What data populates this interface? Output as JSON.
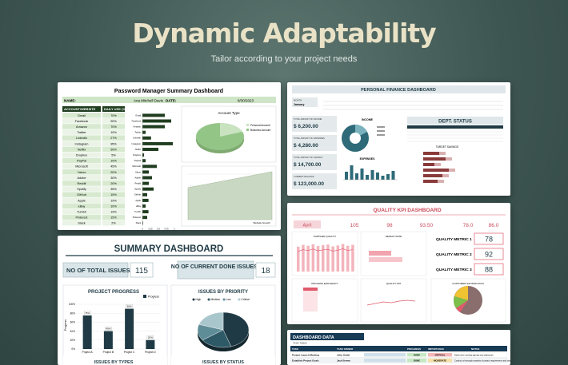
{
  "hero": {
    "title": "Dynamic Adaptability",
    "subtitle": "Tailor according to your project needs"
  },
  "password_dashboard": {
    "title": "Password Manager Summary Dashboard",
    "name_label": "NAME:",
    "name_value": "Ana Mitchell Davis",
    "date_label": "DATE:",
    "date_value": "8/30/2023",
    "col_account": "ACCOUNT/WEBSITE",
    "col_usage": "DAILY USE (%)",
    "accounts": [
      {
        "name": "Gmail",
        "use": "70%"
      },
      {
        "name": "Facebook",
        "use": "90%"
      },
      {
        "name": "Amazon",
        "use": "70%"
      },
      {
        "name": "Twitter",
        "use": "10%"
      },
      {
        "name": "LinkedIn",
        "use": "27%"
      },
      {
        "name": "Instagram",
        "use": "95%"
      },
      {
        "name": "Netflix",
        "use": "50%"
      },
      {
        "name": "Dropbox",
        "use": "5%"
      },
      {
        "name": "PayPal",
        "use": "10%"
      },
      {
        "name": "Microsoft",
        "use": "45%"
      },
      {
        "name": "Yahoo",
        "use": "20%"
      },
      {
        "name": "Adobe",
        "use": "30%"
      },
      {
        "name": "Reddit",
        "use": "20%"
      },
      {
        "name": "Spotify",
        "use": "35%"
      },
      {
        "name": "GitHub",
        "use": "15%"
      },
      {
        "name": "Apple",
        "use": "19%"
      },
      {
        "name": "eBay",
        "use": "10%"
      },
      {
        "name": "Tumblr",
        "use": "19%"
      },
      {
        "name": "Pinterest",
        "use": "15%"
      },
      {
        "name": "Slack",
        "use": "2%"
      }
    ],
    "pie_title": "Account Type",
    "pie_legend": [
      "Personal Account",
      "Business Account"
    ],
    "pie_values": [
      35,
      65
    ],
    "area_caption": "Website Growth"
  },
  "finance_dashboard": {
    "title": "PERSONAL FINANCE DASHBOARD",
    "month_label": "MONTH",
    "month_value": "January",
    "amounts": [
      {
        "label": "TOTAL AMOUNT OF INCOME",
        "value": "$ 6,200.00"
      },
      {
        "label": "TOTAL AMOUNT OF EXPENSES",
        "value": "$ 4,280.00"
      },
      {
        "label": "TOTAL AMOUNT OF SAVINGS",
        "value": "$ 14,700.00"
      },
      {
        "label": "CURRENT BALANCE",
        "value": "$ 123,000.00"
      }
    ],
    "income_title": "INCOME",
    "expenses_title": "EXPENSES",
    "dept_status_title": "DEPT. STATUS",
    "target_title": "TARGET SAVINGS"
  },
  "quality_dashboard": {
    "title": "QUALITY KPI DASHBOARD",
    "month_value": "April",
    "kpis": [
      "105",
      "98",
      "93.50",
      "78.0",
      "86.0"
    ],
    "chart_titles": [
      "SUPPLIER QUALITY",
      "DEFECT RATE",
      "PROCESS EFFICIENCY",
      "QUALITY KPI",
      "CUSTOMER SATISFACTION"
    ],
    "metrics": [
      {
        "label": "QUALITY METRIC 1",
        "value": "78"
      },
      {
        "label": "QUALITY METRIC 2",
        "value": "92"
      },
      {
        "label": "QUALITY METRIC 3",
        "value": "88"
      }
    ]
  },
  "summary_dashboard": {
    "title": "SUMMARY DASHBOARD",
    "total_label": "NO OF TOTAL ISSUES:",
    "total_value": "115",
    "done_label": "NO OF CURRENT DONE ISSUES:",
    "done_value": "18",
    "progress_title": "PROJECT PROGRESS",
    "progress_legend": "Progress",
    "progress_ylabel": "Progress",
    "priority_title": "ISSUES BY PRIORITY",
    "priority_legend": [
      "High",
      "Medium",
      "Low",
      "Critical"
    ],
    "types_title": "ISSUES BY TYPES",
    "status_title": "ISSUES BY STATUS"
  },
  "data_dashboard": {
    "title": "DASHBOARD DATA",
    "subtitle": "TASK TABLE",
    "headers": [
      "TASK",
      "TASK OWNER",
      "",
      "",
      "",
      "PROGRESS",
      "IMPORTANCE",
      "NOTES"
    ],
    "rows": [
      {
        "task": "Project Launch Meeting",
        "owner": "John Smith",
        "progress": "DONE",
        "importance": "CRITICAL",
        "notes": "Determine meeting agenda and objectives"
      },
      {
        "task": "Establish Project Goals",
        "owner": "Jack Brown",
        "progress": "DONE",
        "importance": "MODERATE",
        "notes": "Conduct a thorough analysis of project requirements and objectives"
      }
    ]
  },
  "chart_data": [
    {
      "type": "bar",
      "title": "PROJECT PROGRESS",
      "categories": [
        "Project A",
        "Project B",
        "Project C",
        "Project D"
      ],
      "series": [
        {
          "name": "Progress",
          "values": [
            75,
            40,
            90,
            20
          ]
        }
      ],
      "ylabel": "Progress",
      "ylim": [
        0,
        100
      ],
      "yticks": [
        "0%",
        "20%",
        "40%",
        "60%",
        "80%",
        "100%"
      ]
    },
    {
      "type": "pie",
      "title": "ISSUES BY PRIORITY",
      "categories": [
        "High",
        "Medium",
        "Low",
        "Critical"
      ],
      "values": [
        45,
        20,
        15,
        20
      ],
      "colors": [
        "#1f3a44",
        "#2e5a67",
        "#5f8d97",
        "#a9c6cc"
      ]
    },
    {
      "type": "bar",
      "title": "DAILY USE (%)",
      "categories": [
        "Gmail",
        "Facebook",
        "Amazon",
        "Twitter",
        "LinkedIn",
        "Instagram",
        "Netflix",
        "Dropbox",
        "PayPal",
        "Microsoft",
        "Yahoo",
        "Adobe",
        "Reddit",
        "Spotify",
        "GitHub",
        "Apple",
        "eBay",
        "Tumblr",
        "Pinterest",
        "Slack"
      ],
      "values": [
        70,
        90,
        70,
        10,
        27,
        95,
        50,
        5,
        10,
        45,
        20,
        30,
        20,
        35,
        15,
        19,
        10,
        19,
        15,
        2
      ],
      "orientation": "horizontal",
      "xlim": [
        0,
        100
      ],
      "xticks": [
        "0",
        "0.25",
        "0.5",
        "0.75",
        "1"
      ]
    },
    {
      "type": "bar",
      "title": "SUPPLIER QUALITY",
      "categories": [
        "1",
        "2",
        "3",
        "4",
        "5",
        "6",
        "7",
        "8",
        "9",
        "10",
        "11",
        "12"
      ],
      "values": [
        82,
        88,
        85,
        90,
        84,
        87,
        89,
        83,
        86,
        91,
        85,
        88
      ],
      "ylim": [
        0,
        100
      ]
    }
  ],
  "colors": {
    "forest": "#1f3d1f",
    "pie_green": "#93c587",
    "navy": "#173a55",
    "teal": "#1f3a44",
    "pink": "#e05b6c",
    "background": "#3e5652"
  }
}
